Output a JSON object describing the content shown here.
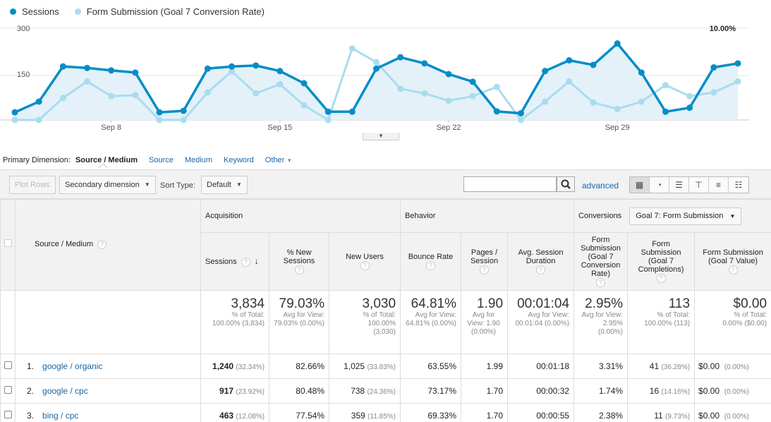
{
  "legend": [
    {
      "label": "Sessions",
      "color": "#058dc7"
    },
    {
      "label": "Form Submission (Goal 7 Conversion Rate)",
      "color": "#a9dcef"
    }
  ],
  "chart_data": {
    "type": "line",
    "x": [
      "Sep 4",
      "Sep 5",
      "Sep 6",
      "Sep 7",
      "Sep 8",
      "Sep 9",
      "Sep 10",
      "Sep 11",
      "Sep 12",
      "Sep 13",
      "Sep 14",
      "Sep 15",
      "Sep 16",
      "Sep 17",
      "Sep 18",
      "Sep 19",
      "Sep 20",
      "Sep 21",
      "Sep 22",
      "Sep 23",
      "Sep 24",
      "Sep 25",
      "Sep 26",
      "Sep 27",
      "Sep 28",
      "Sep 29",
      "Sep 30",
      "Oct 1",
      "Oct 2",
      "Oct 3",
      "Oct 4"
    ],
    "x_ticks": [
      "Sep 8",
      "Sep 15",
      "Sep 22",
      "Sep 29"
    ],
    "left_axis": {
      "ticks": [
        "300",
        "150"
      ],
      "ylim": [
        0,
        300
      ]
    },
    "right_axis": {
      "ticks": [
        "10.00%",
        "5.00%"
      ],
      "ylim": [
        0,
        10
      ]
    },
    "series": [
      {
        "name": "Sessions",
        "axis": "left",
        "color": "#058dc7",
        "values": [
          25,
          60,
          175,
          170,
          162,
          155,
          25,
          30,
          168,
          175,
          178,
          160,
          120,
          27,
          27,
          168,
          205,
          185,
          150,
          125,
          28,
          22,
          160,
          195,
          180,
          250,
          155,
          27,
          40,
          172,
          185
        ]
      },
      {
        "name": "Form Submission (Goal 7 Conversion Rate)",
        "axis": "right",
        "color": "#a9dcef",
        "values": [
          0.0,
          0.0,
          2.4,
          4.2,
          2.6,
          2.7,
          0.0,
          0.0,
          3.0,
          5.3,
          2.9,
          3.9,
          1.6,
          0.0,
          7.8,
          6.3,
          3.4,
          2.9,
          2.1,
          2.6,
          3.6,
          0.0,
          2.0,
          4.2,
          1.9,
          1.2,
          2.0,
          3.8,
          2.6,
          3.0,
          4.2
        ]
      }
    ]
  },
  "primary_dimension": {
    "label": "Primary Dimension:",
    "active": "Source / Medium",
    "links": [
      "Source",
      "Medium",
      "Keyword",
      "Other"
    ]
  },
  "toolbar": {
    "plot_rows": "Plot Rows",
    "secondary_dimension": "Secondary dimension",
    "sort_type_label": "Sort Type:",
    "sort_type_value": "Default",
    "search_placeholder": "",
    "advanced": "advanced"
  },
  "table": {
    "groups": {
      "acquisition": "Acquisition",
      "behavior": "Behavior",
      "conversions": "Conversions",
      "goal_select": "Goal 7: Form Submission"
    },
    "dim_header": "Source / Medium",
    "columns": [
      "Sessions",
      "% New Sessions",
      "New Users",
      "Bounce Rate",
      "Pages / Session",
      "Avg. Session Duration",
      "Form Submission (Goal 7 Conversion Rate)",
      "Form Submission (Goal 7 Completions)",
      "Form Submission (Goal 7 Value)"
    ],
    "totals": [
      {
        "big": "3,834",
        "sub": "% of Total: 100.00% (3,834)"
      },
      {
        "big": "79.03%",
        "sub": "Avg for View: 79.03% (0.00%)"
      },
      {
        "big": "3,030",
        "sub": "% of Total: 100.00% (3,030)"
      },
      {
        "big": "64.81%",
        "sub": "Avg for View: 64.81% (0.00%)"
      },
      {
        "big": "1.90",
        "sub": "Avg for View: 1.90 (0.00%)"
      },
      {
        "big": "00:01:04",
        "sub": "Avg for View: 00:01:04 (0.00%)"
      },
      {
        "big": "2.95%",
        "sub": "Avg for View: 2.95% (0.00%)"
      },
      {
        "big": "113",
        "sub": "% of Total: 100.00% (113)"
      },
      {
        "big": "$0.00",
        "sub": "% of Total: 0.00% ($0.00)"
      }
    ],
    "rows": [
      {
        "num": "1.",
        "source": "google / organic",
        "sessions": "1,240",
        "sessions_pct": "(32.34%)",
        "new_sessions": "82.66%",
        "new_users": "1,025",
        "new_users_pct": "(33.83%)",
        "bounce": "63.55%",
        "pages": "1.99",
        "duration": "00:01:18",
        "conv_rate": "3.31%",
        "completions": "41",
        "completions_pct": "(36.28%)",
        "value": "$0.00",
        "value_pct": "(0.00%)"
      },
      {
        "num": "2.",
        "source": "google / cpc",
        "sessions": "917",
        "sessions_pct": "(23.92%)",
        "new_sessions": "80.48%",
        "new_users": "738",
        "new_users_pct": "(24.36%)",
        "bounce": "73.17%",
        "pages": "1.70",
        "duration": "00:00:32",
        "conv_rate": "1.74%",
        "completions": "16",
        "completions_pct": "(14.16%)",
        "value": "$0.00",
        "value_pct": "(0.00%)"
      },
      {
        "num": "3.",
        "source": "bing / cpc",
        "sessions": "463",
        "sessions_pct": "(12.08%)",
        "new_sessions": "77.54%",
        "new_users": "359",
        "new_users_pct": "(11.85%)",
        "bounce": "69.33%",
        "pages": "1.70",
        "duration": "00:00:55",
        "conv_rate": "2.38%",
        "completions": "11",
        "completions_pct": "(9.73%)",
        "value": "$0.00",
        "value_pct": "(0.00%)"
      }
    ]
  }
}
